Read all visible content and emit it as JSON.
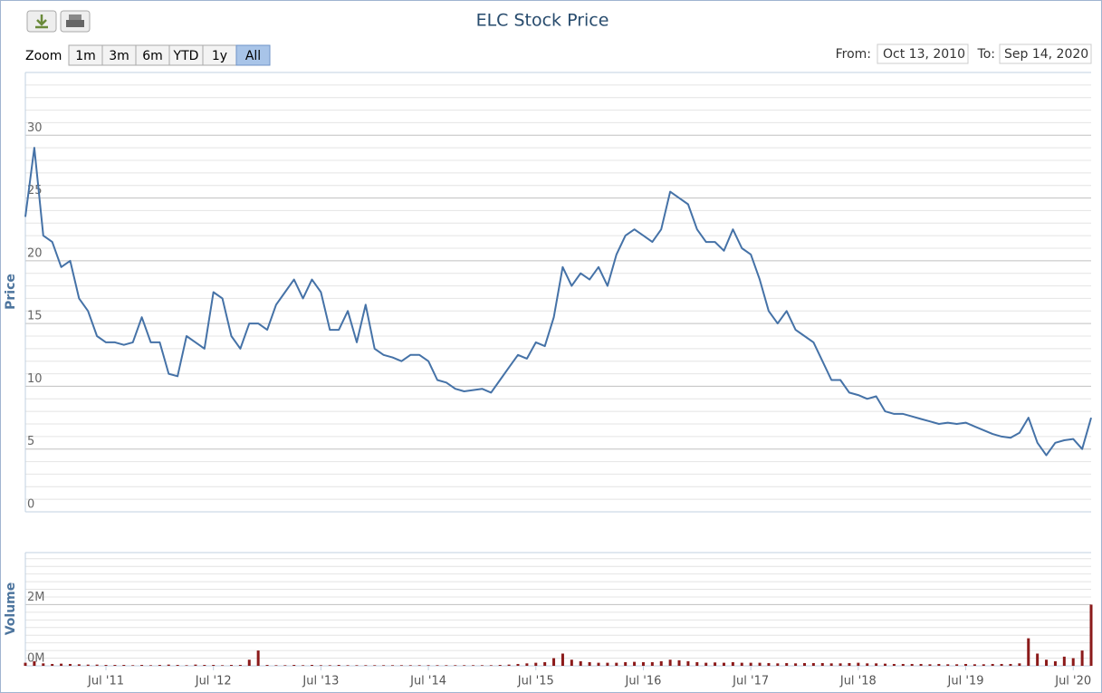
{
  "toolbar": {
    "zoom_label": "Zoom",
    "range_buttons": [
      "1m",
      "3m",
      "6m",
      "YTD",
      "1y",
      "All"
    ],
    "selected_button": 5,
    "from_label": "From:",
    "from": "Oct 13, 2010",
    "to_label": "To:",
    "to": "Sep 14, 2020"
  },
  "chart_data": [
    {
      "type": "line",
      "title": "ELC Stock Price",
      "y_label": "Price",
      "color": "#4572a7",
      "grid": true,
      "minor_tick_interval": 1,
      "xlim": [
        "2010-10",
        "2020-09"
      ],
      "ylim": [
        0,
        35
      ],
      "yticks": [
        0,
        5,
        10,
        15,
        20,
        25,
        30
      ],
      "x": [
        "2010-10",
        "2010-11",
        "2010-12",
        "2011-01",
        "2011-02",
        "2011-03",
        "2011-04",
        "2011-05",
        "2011-06",
        "2011-07",
        "2011-08",
        "2011-09",
        "2011-10",
        "2011-11",
        "2011-12",
        "2012-01",
        "2012-02",
        "2012-03",
        "2012-04",
        "2012-05",
        "2012-06",
        "2012-07",
        "2012-08",
        "2012-09",
        "2012-10",
        "2012-11",
        "2012-12",
        "2013-01",
        "2013-02",
        "2013-03",
        "2013-04",
        "2013-05",
        "2013-06",
        "2013-07",
        "2013-08",
        "2013-09",
        "2013-10",
        "2013-11",
        "2013-12",
        "2014-01",
        "2014-02",
        "2014-03",
        "2014-04",
        "2014-05",
        "2014-06",
        "2014-07",
        "2014-08",
        "2014-09",
        "2014-10",
        "2014-11",
        "2014-12",
        "2015-01",
        "2015-02",
        "2015-03",
        "2015-04",
        "2015-05",
        "2015-06",
        "2015-07",
        "2015-08",
        "2015-09",
        "2015-10",
        "2015-11",
        "2015-12",
        "2016-01",
        "2016-02",
        "2016-03",
        "2016-04",
        "2016-05",
        "2016-06",
        "2016-07",
        "2016-08",
        "2016-09",
        "2016-10",
        "2016-11",
        "2016-12",
        "2017-01",
        "2017-02",
        "2017-03",
        "2017-04",
        "2017-05",
        "2017-06",
        "2017-07",
        "2017-08",
        "2017-09",
        "2017-10",
        "2017-11",
        "2017-12",
        "2018-01",
        "2018-02",
        "2018-03",
        "2018-04",
        "2018-05",
        "2018-06",
        "2018-07",
        "2018-08",
        "2018-09",
        "2018-10",
        "2018-11",
        "2018-12",
        "2019-01",
        "2019-02",
        "2019-03",
        "2019-04",
        "2019-05",
        "2019-06",
        "2019-07",
        "2019-08",
        "2019-09",
        "2019-10",
        "2019-11",
        "2019-12",
        "2020-01",
        "2020-02",
        "2020-03",
        "2020-04",
        "2020-05",
        "2020-06",
        "2020-07",
        "2020-08",
        "2020-09"
      ],
      "values": [
        23.5,
        29,
        22,
        21.5,
        19.5,
        20,
        17,
        16,
        14,
        13.5,
        13.5,
        13.3,
        13.5,
        15.5,
        13.5,
        13.5,
        11,
        10.8,
        14,
        13.5,
        13,
        17.5,
        17,
        14,
        13,
        15,
        15,
        14.5,
        16.5,
        17.5,
        18.5,
        17,
        18.5,
        17.5,
        14.5,
        14.5,
        16,
        13.5,
        16.5,
        13,
        12.5,
        12.3,
        12,
        12.5,
        12.5,
        12,
        10.5,
        10.3,
        9.8,
        9.6,
        9.7,
        9.8,
        9.5,
        10.5,
        11.5,
        12.5,
        12.2,
        13.5,
        13.2,
        15.5,
        19.5,
        18,
        19,
        18.5,
        19.5,
        18,
        20.5,
        22,
        22.5,
        22,
        21.5,
        22.5,
        25.5,
        25,
        24.5,
        22.5,
        21.5,
        21.5,
        20.8,
        22.5,
        21,
        20.5,
        18.5,
        16,
        15,
        16,
        14.5,
        14,
        13.5,
        12,
        10.5,
        10.5,
        9.5,
        9.3,
        9,
        9.2,
        8,
        7.8,
        7.8,
        7.6,
        7.4,
        7.2,
        7,
        7.1,
        7,
        7.1,
        6.8,
        6.5,
        6.2,
        6,
        5.9,
        6.3,
        7.5,
        5.5,
        4.5,
        5.5,
        5.7,
        5.8,
        5,
        7.5
      ]
    },
    {
      "type": "bar",
      "y_label": "Volume",
      "color": "#8b1a1a",
      "grid": true,
      "minor_tick_interval": 250000,
      "xlim": [
        "2010-10",
        "2020-09"
      ],
      "ylim": [
        0,
        3700000
      ],
      "yticks": [
        {
          "value": 0,
          "label": "0M"
        },
        {
          "value": 2000000,
          "label": "2M"
        }
      ],
      "xticks": [
        {
          "value": "2011-07",
          "label": "Jul '11"
        },
        {
          "value": "2012-07",
          "label": "Jul '12"
        },
        {
          "value": "2013-07",
          "label": "Jul '13"
        },
        {
          "value": "2014-07",
          "label": "Jul '14"
        },
        {
          "value": "2015-07",
          "label": "Jul '15"
        },
        {
          "value": "2016-07",
          "label": "Jul '16"
        },
        {
          "value": "2017-07",
          "label": "Jul '17"
        },
        {
          "value": "2018-07",
          "label": "Jul '18"
        },
        {
          "value": "2019-07",
          "label": "Jul '19"
        },
        {
          "value": "2020-07",
          "label": "Jul '20"
        }
      ],
      "x": [
        "2010-10",
        "2010-11",
        "2010-12",
        "2011-01",
        "2011-02",
        "2011-03",
        "2011-04",
        "2011-05",
        "2011-06",
        "2011-07",
        "2011-08",
        "2011-09",
        "2011-10",
        "2011-11",
        "2011-12",
        "2012-01",
        "2012-02",
        "2012-03",
        "2012-04",
        "2012-05",
        "2012-06",
        "2012-07",
        "2012-08",
        "2012-09",
        "2012-10",
        "2012-11",
        "2012-12",
        "2013-01",
        "2013-02",
        "2013-03",
        "2013-04",
        "2013-05",
        "2013-06",
        "2013-07",
        "2013-08",
        "2013-09",
        "2013-10",
        "2013-11",
        "2013-12",
        "2014-01",
        "2014-02",
        "2014-03",
        "2014-04",
        "2014-05",
        "2014-06",
        "2014-07",
        "2014-08",
        "2014-09",
        "2014-10",
        "2014-11",
        "2014-12",
        "2015-01",
        "2015-02",
        "2015-03",
        "2015-04",
        "2015-05",
        "2015-06",
        "2015-07",
        "2015-08",
        "2015-09",
        "2015-10",
        "2015-11",
        "2015-12",
        "2016-01",
        "2016-02",
        "2016-03",
        "2016-04",
        "2016-05",
        "2016-06",
        "2016-07",
        "2016-08",
        "2016-09",
        "2016-10",
        "2016-11",
        "2016-12",
        "2017-01",
        "2017-02",
        "2017-03",
        "2017-04",
        "2017-05",
        "2017-06",
        "2017-07",
        "2017-08",
        "2017-09",
        "2017-10",
        "2017-11",
        "2017-12",
        "2018-01",
        "2018-02",
        "2018-03",
        "2018-04",
        "2018-05",
        "2018-06",
        "2018-07",
        "2018-08",
        "2018-09",
        "2018-10",
        "2018-11",
        "2018-12",
        "2019-01",
        "2019-02",
        "2019-03",
        "2019-04",
        "2019-05",
        "2019-06",
        "2019-07",
        "2019-08",
        "2019-09",
        "2019-10",
        "2019-11",
        "2019-12",
        "2020-01",
        "2020-02",
        "2020-03",
        "2020-04",
        "2020-05",
        "2020-06",
        "2020-07",
        "2020-08",
        "2020-09"
      ],
      "values": [
        100000,
        150000,
        80000,
        60000,
        70000,
        60000,
        50000,
        40000,
        40000,
        30000,
        30000,
        30000,
        20000,
        30000,
        20000,
        30000,
        40000,
        30000,
        20000,
        40000,
        30000,
        30000,
        20000,
        30000,
        30000,
        200000,
        500000,
        30000,
        20000,
        20000,
        30000,
        20000,
        30000,
        20000,
        20000,
        30000,
        20000,
        20000,
        20000,
        20000,
        20000,
        20000,
        20000,
        20000,
        20000,
        20000,
        20000,
        20000,
        20000,
        20000,
        20000,
        20000,
        20000,
        30000,
        40000,
        60000,
        80000,
        100000,
        120000,
        250000,
        400000,
        200000,
        150000,
        120000,
        100000,
        100000,
        100000,
        120000,
        130000,
        120000,
        120000,
        150000,
        200000,
        180000,
        150000,
        120000,
        100000,
        110000,
        100000,
        120000,
        100000,
        100000,
        100000,
        90000,
        80000,
        90000,
        80000,
        90000,
        90000,
        90000,
        80000,
        80000,
        90000,
        100000,
        80000,
        80000,
        70000,
        60000,
        60000,
        60000,
        60000,
        50000,
        60000,
        50000,
        50000,
        60000,
        50000,
        50000,
        60000,
        60000,
        60000,
        80000,
        900000,
        400000,
        200000,
        150000,
        300000,
        250000,
        500000,
        2000000
      ]
    }
  ]
}
